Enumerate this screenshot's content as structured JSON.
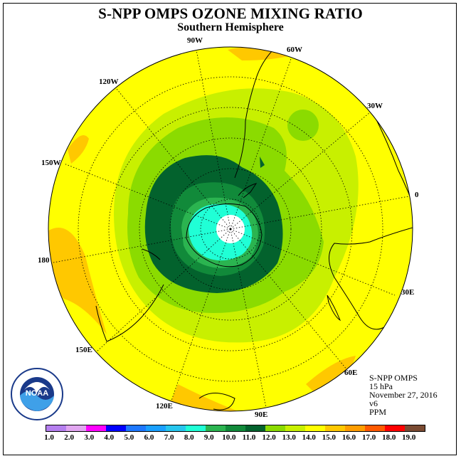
{
  "title": "S-NPP OMPS OZONE MIXING RATIO",
  "subtitle": "Southern Hemisphere",
  "info": {
    "instrument": "S-NPP OMPS",
    "level": "15 hPa",
    "date": "November 27, 2016",
    "version": "v6",
    "units": "PPM"
  },
  "logo": {
    "text": "NOAA",
    "ring_text": "NATIONAL OCEANIC AND ATMOSPHERIC ADMINISTRATION · U.S. DEPARTMENT OF COMMERCE"
  },
  "longitude_labels": [
    "0",
    "30E",
    "60E",
    "90E",
    "120E",
    "150E",
    "180",
    "150W",
    "120W",
    "90W",
    "60W",
    "30W"
  ],
  "colorbar": {
    "ticks": [
      "1.0",
      "2.0",
      "3.0",
      "4.0",
      "5.0",
      "6.0",
      "7.0",
      "8.0",
      "9.0",
      "10.0",
      "11.0",
      "12.0",
      "13.0",
      "14.0",
      "15.0",
      "16.0",
      "17.0",
      "18.0",
      "19.0"
    ],
    "colors": [
      "#b57fef",
      "#e1a6f0",
      "#ff00ff",
      "#0000ff",
      "#1e78ff",
      "#1aa0ff",
      "#27c6ee",
      "#20ffd6",
      "#2bb450",
      "#118a3a",
      "#03622d",
      "#8bdb00",
      "#c8f000",
      "#ffff00",
      "#ffc800",
      "#ff9d00",
      "#ff5a00",
      "#ff0000",
      "#7a4a32"
    ]
  },
  "field": {
    "polar_low_color": "#ffffff",
    "colors": {
      "yellow": "#ffff00",
      "orange": "#ffc800",
      "lime": "#c8f000",
      "green": "#8bdb00",
      "dark_green": "#03622d",
      "mid_green": "#118a3a",
      "green2": "#2bb450",
      "cyan": "#20ffd6"
    }
  }
}
